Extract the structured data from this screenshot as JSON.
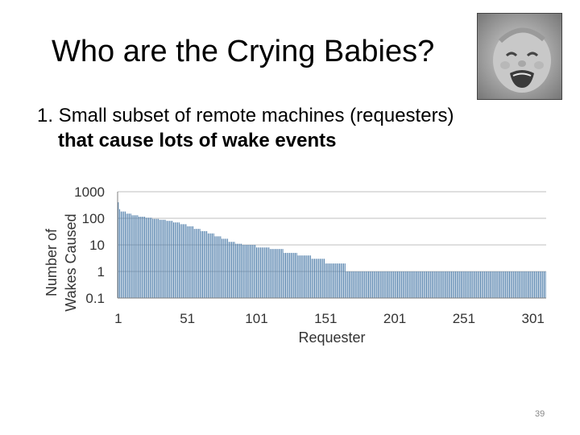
{
  "slide": {
    "title": "Who are the Crying Babies?",
    "bullet_line1": "1. Small subset of remote machines (requesters)",
    "bullet_line2": "that cause lots of wake events",
    "slide_number": "39"
  },
  "image": {
    "description": "crying-baby-photo"
  },
  "colors": {
    "bar": "#4a7aa8",
    "grid": "#bfbfbf",
    "axis": "#808080"
  },
  "chart_data": {
    "type": "bar",
    "title": "",
    "xlabel": "Requester",
    "ylabel_line1": "Number of",
    "ylabel_line2": "Wakes Caused",
    "yscale": "log",
    "ylim": [
      0.1,
      1000
    ],
    "yticks": [
      "1000",
      "100",
      "10",
      "1",
      "0.1"
    ],
    "xticks": [
      "1",
      "51",
      "101",
      "151",
      "201",
      "251",
      "301"
    ],
    "xlim": [
      1,
      310
    ],
    "grid": true,
    "series": [
      {
        "segments": [
          {
            "from": 1,
            "to": 1,
            "value": 400
          },
          {
            "from": 2,
            "to": 2,
            "value": 220
          },
          {
            "from": 3,
            "to": 6,
            "value": 180
          },
          {
            "from": 7,
            "to": 10,
            "value": 150
          },
          {
            "from": 11,
            "to": 15,
            "value": 130
          },
          {
            "from": 16,
            "to": 20,
            "value": 115
          },
          {
            "from": 21,
            "to": 25,
            "value": 105
          },
          {
            "from": 26,
            "to": 30,
            "value": 95
          },
          {
            "from": 31,
            "to": 35,
            "value": 88
          },
          {
            "from": 36,
            "to": 40,
            "value": 80
          },
          {
            "from": 41,
            "to": 45,
            "value": 70
          },
          {
            "from": 46,
            "to": 50,
            "value": 60
          },
          {
            "from": 51,
            "to": 55,
            "value": 50
          },
          {
            "from": 56,
            "to": 60,
            "value": 40
          },
          {
            "from": 61,
            "to": 65,
            "value": 33
          },
          {
            "from": 66,
            "to": 70,
            "value": 27
          },
          {
            "from": 71,
            "to": 75,
            "value": 21
          },
          {
            "from": 76,
            "to": 80,
            "value": 17
          },
          {
            "from": 81,
            "to": 85,
            "value": 13
          },
          {
            "from": 86,
            "to": 90,
            "value": 11
          },
          {
            "from": 91,
            "to": 100,
            "value": 10
          },
          {
            "from": 101,
            "to": 110,
            "value": 8
          },
          {
            "from": 111,
            "to": 120,
            "value": 7
          },
          {
            "from": 121,
            "to": 130,
            "value": 5
          },
          {
            "from": 131,
            "to": 140,
            "value": 4
          },
          {
            "from": 141,
            "to": 150,
            "value": 3
          },
          {
            "from": 151,
            "to": 165,
            "value": 2
          },
          {
            "from": 166,
            "to": 310,
            "value": 1
          }
        ]
      }
    ]
  }
}
